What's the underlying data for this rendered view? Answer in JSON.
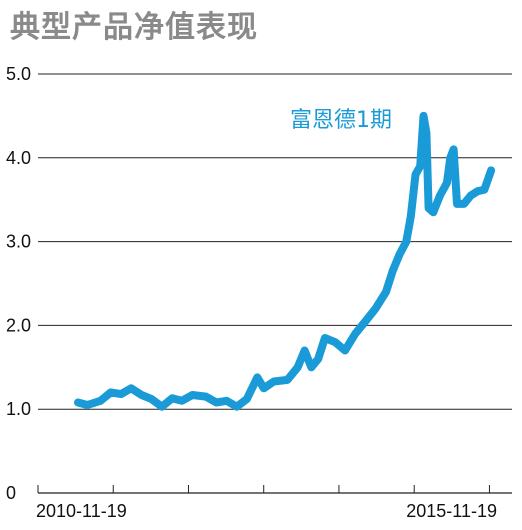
{
  "chart_data": {
    "type": "line",
    "title": "典型产品净值表现",
    "xlabel": "",
    "ylabel": "",
    "x_tick_labels": [
      "2010-11-19",
      "2015-11-19"
    ],
    "x_range": [
      "2010-11-19",
      "2016-01-15"
    ],
    "ylim": [
      0,
      5.0
    ],
    "y_ticks": [
      {
        "value": 0,
        "label": "0"
      },
      {
        "value": 1.0,
        "label": "1.0"
      },
      {
        "value": 2.0,
        "label": "2.0"
      },
      {
        "value": 3.0,
        "label": "3.0"
      },
      {
        "value": 4.0,
        "label": "4.0"
      },
      {
        "value": 5.0,
        "label": "5.0"
      }
    ],
    "grid": "horizontal",
    "legend": "none",
    "series": [
      {
        "name": "富恩德1期",
        "color": "#1a9bd7",
        "points": [
          [
            "2010-11-19",
            1.08
          ],
          [
            "2010-12-31",
            1.05
          ],
          [
            "2011-02-28",
            1.1
          ],
          [
            "2011-04-15",
            1.2
          ],
          [
            "2011-05-31",
            1.18
          ],
          [
            "2011-07-15",
            1.25
          ],
          [
            "2011-08-31",
            1.17
          ],
          [
            "2011-10-15",
            1.12
          ],
          [
            "2011-11-30",
            1.03
          ],
          [
            "2012-01-15",
            1.13
          ],
          [
            "2012-02-28",
            1.1
          ],
          [
            "2012-04-15",
            1.17
          ],
          [
            "2012-06-15",
            1.15
          ],
          [
            "2012-07-31",
            1.08
          ],
          [
            "2012-09-15",
            1.1
          ],
          [
            "2012-10-31",
            1.03
          ],
          [
            "2012-12-15",
            1.12
          ],
          [
            "2013-01-31",
            1.38
          ],
          [
            "2013-03-01",
            1.25
          ],
          [
            "2013-04-15",
            1.33
          ],
          [
            "2013-06-15",
            1.35
          ],
          [
            "2013-07-31",
            1.5
          ],
          [
            "2013-08-31",
            1.7
          ],
          [
            "2013-09-30",
            1.5
          ],
          [
            "2013-10-31",
            1.6
          ],
          [
            "2013-11-30",
            1.85
          ],
          [
            "2014-01-15",
            1.8
          ],
          [
            "2014-02-28",
            1.7
          ],
          [
            "2014-04-15",
            1.9
          ],
          [
            "2014-05-31",
            2.05
          ],
          [
            "2014-07-15",
            2.2
          ],
          [
            "2014-08-31",
            2.4
          ],
          [
            "2014-09-30",
            2.65
          ],
          [
            "2014-10-31",
            2.85
          ],
          [
            "2014-11-30",
            3.0
          ],
          [
            "2014-12-20",
            3.3
          ],
          [
            "2015-01-10",
            3.8
          ],
          [
            "2015-01-31",
            3.9
          ],
          [
            "2015-02-15",
            4.5
          ],
          [
            "2015-02-28",
            4.3
          ],
          [
            "2015-03-10",
            3.4
          ],
          [
            "2015-03-31",
            3.35
          ],
          [
            "2015-04-30",
            3.55
          ],
          [
            "2015-05-31",
            3.7
          ],
          [
            "2015-06-15",
            4.0
          ],
          [
            "2015-06-30",
            4.1
          ],
          [
            "2015-07-15",
            3.45
          ],
          [
            "2015-08-15",
            3.45
          ],
          [
            "2015-09-15",
            3.55
          ],
          [
            "2015-10-15",
            3.6
          ],
          [
            "2015-11-15",
            3.62
          ],
          [
            "2015-12-15",
            3.85
          ]
        ]
      }
    ]
  }
}
